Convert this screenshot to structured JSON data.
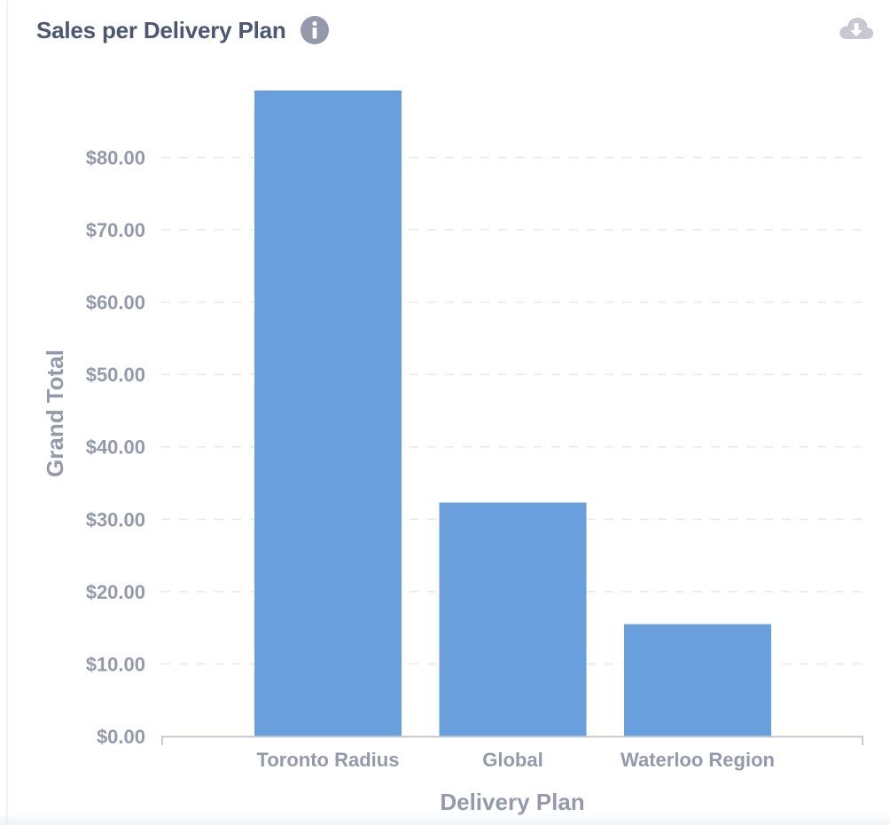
{
  "card": {
    "title": "Sales per Delivery Plan",
    "info_icon": "info-circle-icon",
    "download_icon": "cloud-download-icon"
  },
  "colors": {
    "bar": "#6a9fdd",
    "title": "#4c5773",
    "axis_text": "#949aab",
    "icon": "#949aab",
    "download_icon": "#c6c9d2",
    "grid": "#e6e8ec",
    "axis_line": "#c6c9d2"
  },
  "chart_data": {
    "type": "bar",
    "categories": [
      "Toronto Radius",
      "Global",
      "Waterloo Region"
    ],
    "values": [
      89.25,
      32.3,
      15.5
    ],
    "title": "Sales per Delivery Plan",
    "xlabel": "Delivery Plan",
    "ylabel": "Grand Total",
    "ylim": [
      0,
      89.25
    ],
    "yticks": [
      0,
      10,
      20,
      30,
      40,
      50,
      60,
      70,
      80
    ],
    "ytick_labels": [
      "$0.00",
      "$10.00",
      "$20.00",
      "$30.00",
      "$40.00",
      "$50.00",
      "$60.00",
      "$70.00",
      "$80.00"
    ],
    "grid": true,
    "grid_style": "dashed",
    "legend": "none"
  }
}
